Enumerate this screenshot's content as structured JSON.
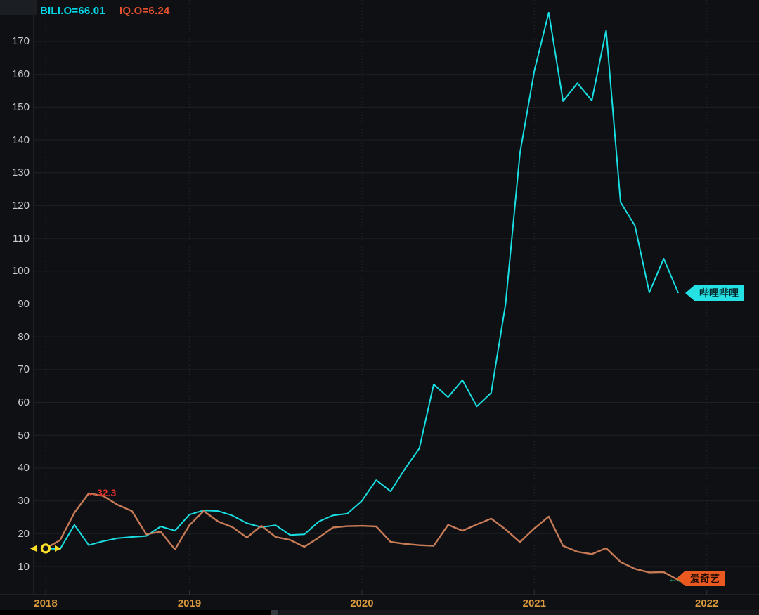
{
  "legend": {
    "bili": "BILI.O=66.01",
    "iq": "IQ.O=6.24"
  },
  "tags": {
    "bili": "哔哩哔哩",
    "iq": "爱奇艺"
  },
  "annotations": {
    "iq_peak": "←32.3",
    "iq_last": "←6"
  },
  "colors": {
    "background": "#0e1013",
    "grid_h": "#1d2026",
    "grid_v": "#24272d",
    "axis_line": "#2e3238",
    "y_label": "#c9cdd1",
    "x_label": "#d9993d",
    "bili_line": "#19dfe3",
    "iq_line": "#c77a56",
    "legend_bili": "#00d7e9",
    "legend_iq": "#e4512e",
    "annotation_red": "#e5302c",
    "annotation_green": "#1db77c",
    "tag_bili_bg": "#25e1e4",
    "tag_bili_text": "#05272a",
    "tag_iq_bg": "#ea5a20",
    "tag_iq_text": "#200a02",
    "start_marker": "#ffdf29"
  },
  "chart_data": {
    "type": "line",
    "title": "",
    "xlabel": "",
    "ylabel": "",
    "y_axis": {
      "ticks": [
        10,
        20,
        30,
        40,
        50,
        60,
        70,
        80,
        90,
        100,
        110,
        120,
        130,
        140,
        150,
        160,
        170
      ],
      "range_visible": [
        1.6,
        182.6
      ],
      "grid": true
    },
    "x_axis": {
      "ticks": [
        {
          "label": "2018",
          "month": "2018-03"
        },
        {
          "label": "2019",
          "month": "2019-01"
        },
        {
          "label": "2020",
          "month": "2020-01"
        },
        {
          "label": "2021",
          "month": "2021-01"
        },
        {
          "label": "2022",
          "month": "2022-01"
        }
      ],
      "grid": "dotted"
    },
    "legend_position": "top-left",
    "series": [
      {
        "name": "BILI.O",
        "label": "哔哩哔哩",
        "color": "#19dfe3",
        "points": [
          [
            "2018-03",
            15.5
          ],
          [
            "2018-04",
            15.3
          ],
          [
            "2018-05",
            22.7
          ],
          [
            "2018-06",
            16.5
          ],
          [
            "2018-07",
            17.7
          ],
          [
            "2018-08",
            18.6
          ],
          [
            "2018-09",
            19.0
          ],
          [
            "2018-10",
            19.3
          ],
          [
            "2018-11",
            22.2
          ],
          [
            "2018-12",
            20.9
          ],
          [
            "2019-01",
            25.8
          ],
          [
            "2019-02",
            27.1
          ],
          [
            "2019-03",
            26.9
          ],
          [
            "2019-04",
            25.5
          ],
          [
            "2019-05",
            23.2
          ],
          [
            "2019-06",
            22.0
          ],
          [
            "2019-07",
            22.6
          ],
          [
            "2019-08",
            19.6
          ],
          [
            "2019-09",
            19.8
          ],
          [
            "2019-10",
            23.7
          ],
          [
            "2019-11",
            25.6
          ],
          [
            "2019-12",
            26.1
          ],
          [
            "2020-01",
            30.0
          ],
          [
            "2020-02",
            36.3
          ],
          [
            "2020-03",
            32.9
          ],
          [
            "2020-04",
            39.8
          ],
          [
            "2020-05",
            46.0
          ],
          [
            "2020-06",
            65.5
          ],
          [
            "2020-07",
            61.6
          ],
          [
            "2020-08",
            66.8
          ],
          [
            "2020-09",
            58.8
          ],
          [
            "2020-10",
            62.9
          ],
          [
            "2020-11",
            90.0
          ],
          [
            "2020-12",
            136.0
          ],
          [
            "2021-01",
            161.0
          ],
          [
            "2021-02",
            178.8
          ],
          [
            "2021-03",
            151.8
          ],
          [
            "2021-04",
            157.3
          ],
          [
            "2021-05",
            152.0
          ],
          [
            "2021-06",
            173.4
          ],
          [
            "2021-07",
            121.0
          ],
          [
            "2021-08",
            113.9
          ],
          [
            "2021-09",
            93.5
          ],
          [
            "2021-10",
            103.8
          ],
          [
            "2021-11",
            93.5
          ]
        ]
      },
      {
        "name": "IQ.O",
        "label": "爱奇艺",
        "color": "#c77a56",
        "points": [
          [
            "2018-03",
            15.5
          ],
          [
            "2018-04",
            18.0
          ],
          [
            "2018-05",
            26.4
          ],
          [
            "2018-06",
            32.3
          ],
          [
            "2018-07",
            31.5
          ],
          [
            "2018-08",
            28.8
          ],
          [
            "2018-09",
            26.9
          ],
          [
            "2018-10",
            19.8
          ],
          [
            "2018-11",
            20.6
          ],
          [
            "2018-12",
            15.2
          ],
          [
            "2019-01",
            22.6
          ],
          [
            "2019-02",
            26.9
          ],
          [
            "2019-03",
            23.7
          ],
          [
            "2019-04",
            22.0
          ],
          [
            "2019-05",
            18.8
          ],
          [
            "2019-06",
            22.4
          ],
          [
            "2019-07",
            19.0
          ],
          [
            "2019-08",
            18.1
          ],
          [
            "2019-09",
            16.0
          ],
          [
            "2019-10",
            18.8
          ],
          [
            "2019-11",
            21.9
          ],
          [
            "2019-12",
            22.3
          ],
          [
            "2020-01",
            22.4
          ],
          [
            "2020-02",
            22.2
          ],
          [
            "2020-03",
            17.5
          ],
          [
            "2020-04",
            16.9
          ],
          [
            "2020-05",
            16.5
          ],
          [
            "2020-06",
            16.3
          ],
          [
            "2020-07",
            22.7
          ],
          [
            "2020-08",
            20.9
          ],
          [
            "2020-09",
            22.8
          ],
          [
            "2020-10",
            24.6
          ],
          [
            "2020-11",
            21.3
          ],
          [
            "2020-12",
            17.4
          ],
          [
            "2021-01",
            21.6
          ],
          [
            "2021-02",
            25.2
          ],
          [
            "2021-03",
            16.3
          ],
          [
            "2021-04",
            14.5
          ],
          [
            "2021-05",
            13.8
          ],
          [
            "2021-06",
            15.6
          ],
          [
            "2021-07",
            11.4
          ],
          [
            "2021-08",
            9.3
          ],
          [
            "2021-09",
            8.2
          ],
          [
            "2021-10",
            8.3
          ],
          [
            "2021-11",
            5.9
          ]
        ]
      }
    ]
  }
}
